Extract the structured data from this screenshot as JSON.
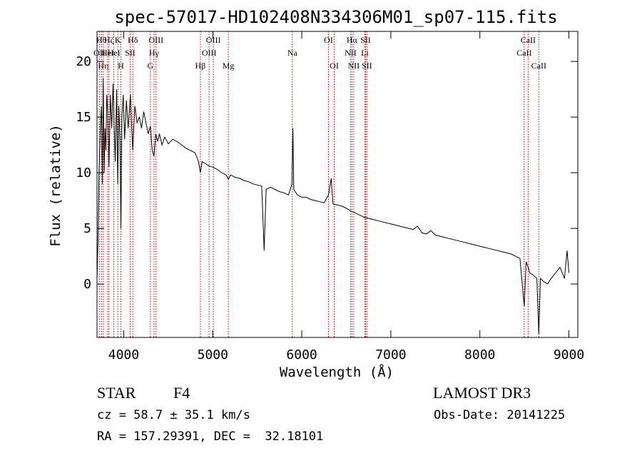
{
  "chart_data": {
    "type": "line",
    "title": "spec-57017-HD102408N334306M01_sp07-115.fits",
    "xlabel": "Wavelength (Å)",
    "ylabel": "Flux (relative)",
    "xlim": [
      3700,
      9100
    ],
    "ylim": [
      -4.8,
      22.7
    ],
    "xticks": [
      4000,
      5000,
      6000,
      7000,
      8000,
      9000
    ],
    "yticks": [
      0,
      5,
      10,
      15,
      20
    ],
    "line_color": "#000000",
    "marker_color": "#cc0000",
    "series": [
      {
        "points": [
          [
            3700,
            0.3
          ],
          [
            3712,
            4.5
          ],
          [
            3722,
            9.5
          ],
          [
            3735,
            13.6
          ],
          [
            3750,
            16.0
          ],
          [
            3760,
            9.0
          ],
          [
            3770,
            18.5
          ],
          [
            3780,
            10.0
          ],
          [
            3790,
            14.0
          ],
          [
            3800,
            12.0
          ],
          [
            3810,
            17.0
          ],
          [
            3820,
            15.5
          ],
          [
            3835,
            10.5
          ],
          [
            3850,
            17.0
          ],
          [
            3865,
            14.0
          ],
          [
            3880,
            18.0
          ],
          [
            3890,
            15.0
          ],
          [
            3905,
            11.0
          ],
          [
            3920,
            17.5
          ],
          [
            3933,
            9.0
          ],
          [
            3945,
            16.0
          ],
          [
            3958,
            13.0
          ],
          [
            3968,
            5.0
          ],
          [
            3980,
            15.0
          ],
          [
            3995,
            17.0
          ],
          [
            4010,
            13.0
          ],
          [
            4030,
            16.5
          ],
          [
            4050,
            14.0
          ],
          [
            4075,
            17.0
          ],
          [
            4101,
            12.0
          ],
          [
            4125,
            16.0
          ],
          [
            4150,
            14.5
          ],
          [
            4175,
            15.0
          ],
          [
            4200,
            14.0
          ],
          [
            4225,
            15.5
          ],
          [
            4250,
            14.5
          ],
          [
            4275,
            13.5
          ],
          [
            4300,
            14.2
          ],
          [
            4320,
            12.0
          ],
          [
            4340,
            11.5
          ],
          [
            4360,
            13.5
          ],
          [
            4380,
            12.8
          ],
          [
            4400,
            13.5
          ],
          [
            4430,
            12.5
          ],
          [
            4460,
            13.2
          ],
          [
            4500,
            12.6
          ],
          [
            4550,
            13.0
          ],
          [
            4600,
            12.8
          ],
          [
            4650,
            12.5
          ],
          [
            4700,
            12.2
          ],
          [
            4750,
            12.0
          ],
          [
            4800,
            11.8
          ],
          [
            4840,
            11.0
          ],
          [
            4861,
            10.0
          ],
          [
            4880,
            11.0
          ],
          [
            4920,
            10.8
          ],
          [
            4960,
            10.6
          ],
          [
            5000,
            10.5
          ],
          [
            5050,
            10.3
          ],
          [
            5100,
            10.0
          ],
          [
            5150,
            9.8
          ],
          [
            5175,
            9.4
          ],
          [
            5200,
            9.8
          ],
          [
            5250,
            9.6
          ],
          [
            5300,
            9.5
          ],
          [
            5350,
            9.3
          ],
          [
            5400,
            9.2
          ],
          [
            5450,
            9.0
          ],
          [
            5500,
            8.9
          ],
          [
            5550,
            8.8
          ],
          [
            5577,
            3.0
          ],
          [
            5600,
            8.5
          ],
          [
            5650,
            8.7
          ],
          [
            5700,
            8.5
          ],
          [
            5750,
            8.3
          ],
          [
            5800,
            8.2
          ],
          [
            5850,
            8.0
          ],
          [
            5890,
            9.0
          ],
          [
            5900,
            14.0
          ],
          [
            5910,
            8.5
          ],
          [
            5950,
            8.0
          ],
          [
            6000,
            7.8
          ],
          [
            6050,
            7.8
          ],
          [
            6100,
            7.6
          ],
          [
            6150,
            7.5
          ],
          [
            6200,
            7.4
          ],
          [
            6250,
            7.3
          ],
          [
            6300,
            8.0
          ],
          [
            6330,
            9.5
          ],
          [
            6350,
            7.2
          ],
          [
            6400,
            7.1
          ],
          [
            6450,
            7.0
          ],
          [
            6500,
            6.8
          ],
          [
            6563,
            6.5
          ],
          [
            6600,
            6.4
          ],
          [
            6650,
            6.2
          ],
          [
            6700,
            6.0
          ],
          [
            6750,
            5.9
          ],
          [
            6800,
            5.8
          ],
          [
            6850,
            5.7
          ],
          [
            6900,
            5.6
          ],
          [
            6950,
            5.5
          ],
          [
            7000,
            5.4
          ],
          [
            7050,
            5.3
          ],
          [
            7100,
            5.2
          ],
          [
            7150,
            5.1
          ],
          [
            7200,
            5.0
          ],
          [
            7250,
            4.9
          ],
          [
            7300,
            5.2
          ],
          [
            7350,
            4.6
          ],
          [
            7400,
            4.5
          ],
          [
            7450,
            4.8
          ],
          [
            7500,
            4.4
          ],
          [
            7550,
            4.3
          ],
          [
            7600,
            4.2
          ],
          [
            7650,
            4.1
          ],
          [
            7700,
            4.0
          ],
          [
            7750,
            3.9
          ],
          [
            7800,
            3.8
          ],
          [
            7850,
            3.7
          ],
          [
            7900,
            3.6
          ],
          [
            7950,
            3.5
          ],
          [
            8000,
            3.4
          ],
          [
            8050,
            3.3
          ],
          [
            8100,
            3.2
          ],
          [
            8150,
            3.1
          ],
          [
            8200,
            3.0
          ],
          [
            8250,
            2.9
          ],
          [
            8300,
            2.8
          ],
          [
            8350,
            2.7
          ],
          [
            8400,
            2.5
          ],
          [
            8450,
            2.3
          ],
          [
            8498,
            -2.0
          ],
          [
            8520,
            2.0
          ],
          [
            8542,
            1.5
          ],
          [
            8560,
            1.0
          ],
          [
            8600,
            0.8
          ],
          [
            8640,
            0.5
          ],
          [
            8662,
            -4.5
          ],
          [
            8680,
            0.5
          ],
          [
            8720,
            0.2
          ],
          [
            8760,
            0.0
          ],
          [
            8800,
            0.5
          ],
          [
            8850,
            1.0
          ],
          [
            8900,
            1.5
          ],
          [
            8950,
            0.5
          ],
          [
            8980,
            3.0
          ],
          [
            9000,
            1.0
          ]
        ]
      }
    ],
    "line_markers": [
      {
        "x": 3727,
        "label": "OII",
        "row": 1
      },
      {
        "x": 3750,
        "label": "Hθ",
        "row": 0
      },
      {
        "x": 3771,
        "label": "Hη",
        "row": 2
      },
      {
        "x": 3820,
        "label": "HeI",
        "row": 1
      },
      {
        "x": 3835,
        "label": "Hζ",
        "row": 0
      },
      {
        "x": 3889,
        "label": "HeI",
        "row": 1
      },
      {
        "x": 3934,
        "label": "K",
        "row": 0
      },
      {
        "x": 3968,
        "label": "H",
        "row": 2
      },
      {
        "x": 4072,
        "label": "SII",
        "row": 1
      },
      {
        "x": 4102,
        "label": "Hδ",
        "row": 0
      },
      {
        "x": 4300,
        "label": "G",
        "row": 2
      },
      {
        "x": 4340,
        "label": "Hγ",
        "row": 1
      },
      {
        "x": 4363,
        "label": "OIII",
        "row": 0
      },
      {
        "x": 4861,
        "label": "Hβ",
        "row": 2
      },
      {
        "x": 4959,
        "label": "OIII",
        "row": 1
      },
      {
        "x": 5007,
        "label": "OIII",
        "row": 0
      },
      {
        "x": 5175,
        "label": "Mg",
        "row": 2
      },
      {
        "x": 5893,
        "label": "Na",
        "row": 1
      },
      {
        "x": 6300,
        "label": "OI",
        "row": 0
      },
      {
        "x": 6364,
        "label": "OI",
        "row": 2
      },
      {
        "x": 6548,
        "label": "NII",
        "row": 1
      },
      {
        "x": 6563,
        "label": "Hα",
        "row": 0
      },
      {
        "x": 6583,
        "label": "NII",
        "row": 2
      },
      {
        "x": 6708,
        "label": "Li",
        "row": 1
      },
      {
        "x": 6716,
        "label": "SII",
        "row": 0
      },
      {
        "x": 6731,
        "label": "SII",
        "row": 2
      },
      {
        "x": 8498,
        "label": "CaII",
        "row": 1
      },
      {
        "x": 8542,
        "label": "CaII",
        "row": 0
      },
      {
        "x": 8662,
        "label": "CaII",
        "row": 2
      }
    ]
  },
  "info": {
    "object_type": "STAR",
    "subclass": "F4",
    "survey": "LAMOST DR3",
    "cz": "cz = 58.7 ± 35.1 km/s",
    "obs_date": "Obs-Date: 20141225",
    "coords": "RA = 157.29391, DEC =  32.18101"
  }
}
